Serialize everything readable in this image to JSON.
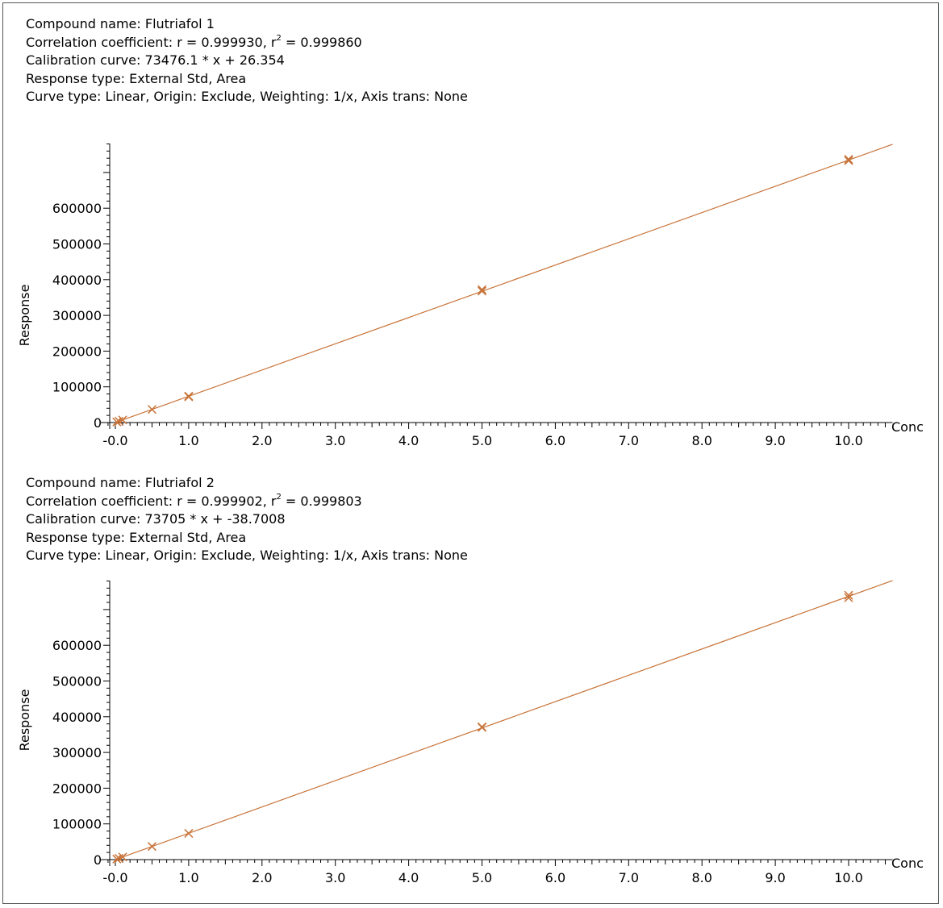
{
  "colors": {
    "series": "#c8743a",
    "axis": "#000000"
  },
  "panels": [
    {
      "compound": "Compound name: Flutriafol 1",
      "corr_pre": "Correlation coefficient: r = 0.999930, r",
      "corr_sup": "2",
      "corr_post": " = 0.999860",
      "curve": "Calibration curve: 73476.1 * x + 26.354",
      "response": "Response type: External Std, Area",
      "curve_type": "Curve type: Linear, Origin: Exclude, Weighting: 1/x, Axis trans: None"
    },
    {
      "compound": "Compound name: Flutriafol 2",
      "corr_pre": "Correlation coefficient: r = 0.999902, r",
      "corr_sup": "2",
      "corr_post": " = 0.999803",
      "curve": "Calibration curve: 73705 * x + -38.7008",
      "response": "Response type: External Std, Area",
      "curve_type": "Curve type: Linear, Origin: Exclude, Weighting: 1/x, Axis trans: None"
    }
  ],
  "chart_data": [
    {
      "type": "scatter",
      "xlabel": "Conc",
      "ylabel": "Response",
      "xlim": [
        -0.1,
        10.6
      ],
      "ylim": [
        0,
        790000
      ],
      "x_ticks": [
        "-0.0",
        "1.0",
        "2.0",
        "3.0",
        "4.0",
        "5.0",
        "6.0",
        "7.0",
        "8.0",
        "9.0",
        "10.0"
      ],
      "y_ticks": [
        "0",
        "100000",
        "200000",
        "300000",
        "400000",
        "500000",
        "600000"
      ],
      "fit": {
        "slope": 73476.1,
        "intercept": 26.354
      },
      "points": [
        {
          "x": 0.02,
          "y": 1500
        },
        {
          "x": 0.05,
          "y": 3700
        },
        {
          "x": 0.1,
          "y": 7300
        },
        {
          "x": 0.5,
          "y": 36700
        },
        {
          "x": 1.0,
          "y": 72000
        },
        {
          "x": 1.0,
          "y": 74000
        },
        {
          "x": 5.0,
          "y": 368000
        },
        {
          "x": 5.0,
          "y": 372000
        },
        {
          "x": 10.0,
          "y": 733000
        },
        {
          "x": 10.0,
          "y": 737000
        }
      ]
    },
    {
      "type": "scatter",
      "xlabel": "Conc",
      "ylabel": "Response",
      "xlim": [
        -0.1,
        10.6
      ],
      "ylim": [
        0,
        790000
      ],
      "x_ticks": [
        "-0.0",
        "1.0",
        "2.0",
        "3.0",
        "4.0",
        "5.0",
        "6.0",
        "7.0",
        "8.0",
        "9.0",
        "10.0"
      ],
      "y_ticks": [
        "0",
        "100000",
        "200000",
        "300000",
        "400000",
        "500000",
        "600000"
      ],
      "fit": {
        "slope": 73705,
        "intercept": -38.7008
      },
      "points": [
        {
          "x": 0.02,
          "y": 1500
        },
        {
          "x": 0.05,
          "y": 3700
        },
        {
          "x": 0.1,
          "y": 7300
        },
        {
          "x": 0.5,
          "y": 36800
        },
        {
          "x": 1.0,
          "y": 73500
        },
        {
          "x": 5.0,
          "y": 370000
        },
        {
          "x": 5.0,
          "y": 371500
        },
        {
          "x": 10.0,
          "y": 733000
        },
        {
          "x": 10.0,
          "y": 740000
        }
      ]
    }
  ]
}
